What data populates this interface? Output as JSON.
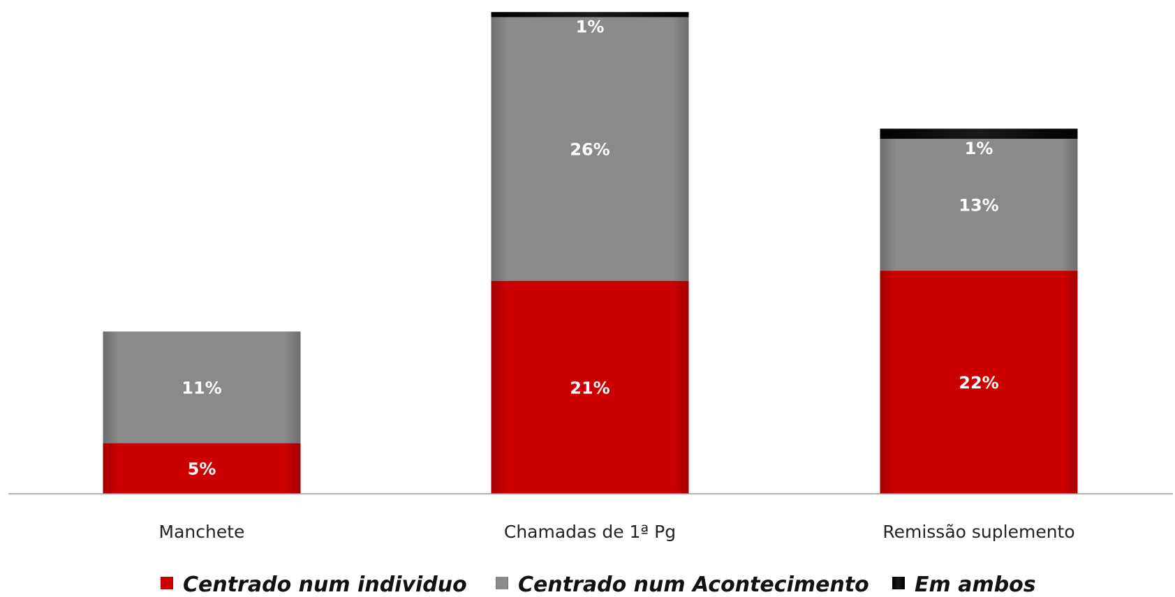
{
  "chart_data": {
    "type": "bar",
    "stacked": true,
    "categories": [
      "Manchete",
      "Chamadas de 1ª Pg",
      "Remissão suplemento"
    ],
    "series": [
      {
        "name": "Centrado num individuo",
        "values": [
          5,
          21,
          22
        ],
        "labels": [
          "5%",
          "21%",
          "22%"
        ],
        "color": "#cc0000"
      },
      {
        "name": "Centrado num Acontecimento",
        "values": [
          11,
          26,
          13
        ],
        "labels": [
          "11%",
          "26%",
          "13%"
        ],
        "color": "#8a8a8a"
      },
      {
        "name": "Em ambos",
        "values": [
          0,
          0.5,
          1
        ],
        "labels": [
          "",
          "1%",
          "1%"
        ],
        "color": "#111111"
      }
    ],
    "ylim": [
      0,
      48
    ],
    "grid": false,
    "legend_position": "bottom"
  }
}
